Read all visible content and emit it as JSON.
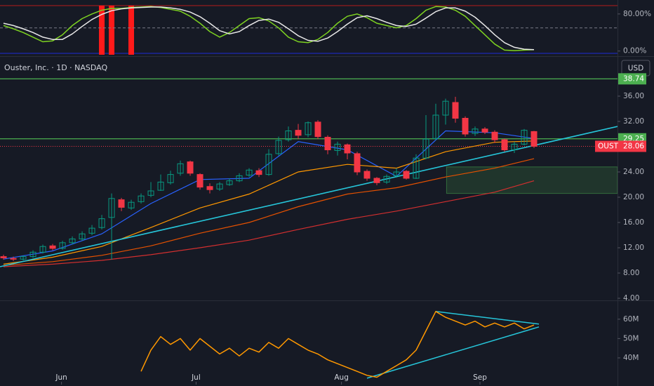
{
  "chart_data": [
    {
      "type": "line",
      "xlim": [
        -0.36,
        62.5
      ],
      "ylim": [
        -8,
        98
      ],
      "yticks": [
        {
          "value": 80,
          "label": "80.00%"
        },
        {
          "value": 0,
          "label": "0.00%"
        }
      ],
      "midline": 50,
      "highlights": [
        10,
        11,
        13
      ],
      "highlight_color": "#ff1a1a",
      "series": [
        {
          "color": "#7ed321",
          "values": [
            55,
            48,
            40,
            30,
            20,
            22,
            35,
            55,
            70,
            80,
            88,
            92,
            92,
            94,
            95,
            96,
            94,
            90,
            86,
            75,
            60,
            42,
            30,
            40,
            55,
            70,
            72,
            65,
            50,
            30,
            20,
            18,
            25,
            40,
            60,
            75,
            80,
            72,
            60,
            55,
            50,
            55,
            70,
            88,
            96,
            95,
            88,
            75,
            55,
            35,
            15,
            2,
            1,
            2,
            3
          ]
        },
        {
          "color": "#e8e8e8",
          "values": [
            60,
            55,
            48,
            40,
            30,
            25,
            25,
            37,
            53,
            68,
            79,
            87,
            91,
            93,
            94,
            95,
            95,
            93,
            90,
            84,
            74,
            60,
            44,
            37,
            42,
            55,
            66,
            69,
            62,
            48,
            33,
            23,
            21,
            28,
            42,
            58,
            72,
            76,
            70,
            62,
            55,
            53,
            58,
            71,
            85,
            93,
            93,
            86,
            73,
            55,
            35,
            18,
            8,
            4,
            3
          ]
        }
      ]
    },
    {
      "type": "candlestick",
      "title": "Ouster, Inc. · 1D · NASDAQ",
      "currency": "USD",
      "xlim": [
        -0.36,
        62.5
      ],
      "ylim": [
        3.67,
        42
      ],
      "yticks": [
        {
          "value": 36,
          "label": "36.00"
        },
        {
          "value": 32,
          "label": "32.00"
        },
        {
          "value": 24,
          "label": "24.00"
        },
        {
          "value": 20,
          "label": "20.00"
        },
        {
          "value": 16,
          "label": "16.00"
        },
        {
          "value": 12,
          "label": "12.00"
        },
        {
          "value": 8,
          "label": "8.00"
        },
        {
          "value": 4,
          "label": "4.00"
        }
      ],
      "up_color": "#089981",
      "down_color": "#f23645",
      "open": [
        10.6,
        10.3,
        10.2,
        10.6,
        11.3,
        12.3,
        11.9,
        12.8,
        13.4,
        14.3,
        15.2,
        16.8,
        19.6,
        18.3,
        19.3,
        20.3,
        21.1,
        22.3,
        23.8,
        25.6,
        23.6,
        21.7,
        21.3,
        22.0,
        22.6,
        23.5,
        24.2,
        23.6,
        26.9,
        29.1,
        30.6,
        29.9,
        31.9,
        29.5,
        27.4,
        28.3,
        26.9,
        24.1,
        23.0,
        22.4,
        23.4,
        24.1,
        23.0,
        26.2,
        29.3,
        33.0,
        35.0,
        32.5,
        30.1,
        30.8,
        30.3,
        29.1,
        27.5,
        28.4,
        30.4
      ],
      "high": [
        10.9,
        10.6,
        10.8,
        11.6,
        12.5,
        12.6,
        13.1,
        13.8,
        14.6,
        15.6,
        17.2,
        20.6,
        19.9,
        19.6,
        20.6,
        22.4,
        23.6,
        24.2,
        25.8,
        25.8,
        23.8,
        22.2,
        22.4,
        23.0,
        23.8,
        24.6,
        24.6,
        27.6,
        29.6,
        31.2,
        31.6,
        32.0,
        32.2,
        29.8,
        28.8,
        28.5,
        27.2,
        24.4,
        23.2,
        23.6,
        24.6,
        24.3,
        26.8,
        33.0,
        34.8,
        35.6,
        35.9,
        32.8,
        31.2,
        31.1,
        30.6,
        29.3,
        28.8,
        30.8,
        30.5
      ],
      "low": [
        10.1,
        9.9,
        10.0,
        10.4,
        11.1,
        11.6,
        11.7,
        12.5,
        13.1,
        14.0,
        14.9,
        10.1,
        17.8,
        18.0,
        19.0,
        20.0,
        21.0,
        22.0,
        23.4,
        23.4,
        21.2,
        20.6,
        21.0,
        21.8,
        22.4,
        23.2,
        23.2,
        23.4,
        26.6,
        28.8,
        29.2,
        29.5,
        29.2,
        26.8,
        26.6,
        26.0,
        23.5,
        22.6,
        21.9,
        22.1,
        23.1,
        22.8,
        22.9,
        26.0,
        29.0,
        31.5,
        31.8,
        29.6,
        29.7,
        30.0,
        28.6,
        27.2,
        27.0,
        28.2,
        27.8
      ],
      "close": [
        10.4,
        10.2,
        10.6,
        11.3,
        12.2,
        11.9,
        12.8,
        13.4,
        14.2,
        15.1,
        16.6,
        19.8,
        18.4,
        19.2,
        20.2,
        21.0,
        22.4,
        23.6,
        25.3,
        23.8,
        21.6,
        21.2,
        22.1,
        22.6,
        23.4,
        24.3,
        23.6,
        26.8,
        29.0,
        30.5,
        29.8,
        31.8,
        29.6,
        27.5,
        28.4,
        27.0,
        24.0,
        23.0,
        22.3,
        23.3,
        24.0,
        23.0,
        26.2,
        29.2,
        33.0,
        35.2,
        32.5,
        30.0,
        30.8,
        30.3,
        29.1,
        27.5,
        28.4,
        30.6,
        28.06
      ],
      "overlays": [
        {
          "color": "#2962ff",
          "x": [
            0,
            5,
            10,
            15,
            20,
            25,
            30,
            35,
            40,
            45,
            50,
            54
          ],
          "values": [
            10.2,
            11.5,
            14.2,
            19.0,
            22.8,
            23.0,
            28.8,
            27.5,
            23.3,
            30.5,
            30.2,
            29.3
          ]
        },
        {
          "color": "#ff9800",
          "x": [
            0,
            5,
            10,
            15,
            20,
            25,
            30,
            35,
            40,
            45,
            50,
            54
          ],
          "values": [
            9.4,
            10.5,
            12.2,
            15.2,
            18.3,
            20.5,
            24.0,
            25.2,
            24.6,
            27.2,
            28.7,
            28.9
          ]
        },
        {
          "color": "#e65100",
          "x": [
            0,
            5,
            10,
            15,
            20,
            25,
            30,
            35,
            40,
            45,
            50,
            54
          ],
          "values": [
            9.2,
            9.8,
            10.8,
            12.3,
            14.3,
            16.0,
            18.5,
            20.5,
            21.5,
            23.2,
            24.6,
            26.1
          ]
        },
        {
          "color": "#d32f2f",
          "x": [
            0,
            5,
            10,
            15,
            20,
            25,
            30,
            35,
            40,
            45,
            50,
            54
          ],
          "values": [
            9.0,
            9.4,
            10.0,
            10.9,
            12.0,
            13.2,
            14.9,
            16.5,
            17.8,
            19.3,
            20.8,
            22.6
          ]
        }
      ],
      "trendline": {
        "color": "#26c6da",
        "x": [
          -0.36,
          62.5
        ],
        "y": [
          9.0,
          31.2
        ]
      },
      "zone": {
        "color": "#4caf50",
        "x": [
          45.1,
          62.5
        ],
        "y": [
          20.6,
          24.8
        ]
      },
      "price_lines": [
        {
          "value": 38.74,
          "color": "#4caf50"
        },
        {
          "value": 29.25,
          "color": "#4caf50"
        }
      ],
      "last": {
        "symbol": "OUST",
        "value": 28.06,
        "color": "#f23645"
      }
    },
    {
      "type": "line",
      "xlim": [
        -0.36,
        62.5
      ],
      "ylim": [
        29100000,
        69000000
      ],
      "yticks": [
        {
          "value": 60000000,
          "label": "60M"
        },
        {
          "value": 50000000,
          "label": "50M"
        },
        {
          "value": 40000000,
          "label": "40M"
        }
      ],
      "xticks": [
        {
          "value": 5.9,
          "label": "Jun"
        },
        {
          "value": 19.6,
          "label": "Jul"
        },
        {
          "value": 34.4,
          "label": "Aug"
        },
        {
          "value": 48.5,
          "label": "Sep"
        }
      ],
      "series": [
        {
          "color": "#ff9800",
          "values": [
            null,
            null,
            null,
            null,
            null,
            null,
            null,
            null,
            null,
            null,
            null,
            null,
            null,
            null,
            33000000,
            44000000,
            51000000,
            47000000,
            50000000,
            44000000,
            50000000,
            46000000,
            42000000,
            45000000,
            41000000,
            45000000,
            43000000,
            48000000,
            45000000,
            50000000,
            47000000,
            44000000,
            42000000,
            39000000,
            37000000,
            35000000,
            33000000,
            31000000,
            30000000,
            33000000,
            36000000,
            39000000,
            44000000,
            54000000,
            64000000,
            61000000,
            59000000,
            57000000,
            59000000,
            56000000,
            58000000,
            56000000,
            58000000,
            55000000,
            57000000
          ]
        }
      ],
      "trendlines": [
        {
          "color": "#26c6da",
          "x": [
            44,
            54.5
          ],
          "y": [
            64000000,
            57500000
          ]
        },
        {
          "color": "#26c6da",
          "x": [
            37,
            54.5
          ],
          "y": [
            29500000,
            56000000
          ]
        }
      ]
    }
  ]
}
